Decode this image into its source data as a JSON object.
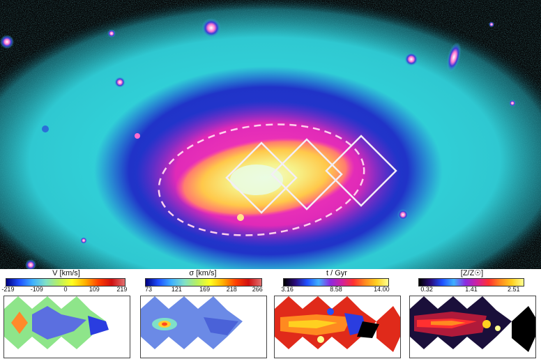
{
  "panels": [
    {
      "title": "V [km/s]",
      "ticks": [
        "-219",
        "-109",
        "0",
        "109",
        "219"
      ],
      "colormap": "sauron"
    },
    {
      "title": "σ [km/s]",
      "ticks": [
        "73",
        "121",
        "169",
        "218",
        "266"
      ],
      "colormap": "sauron"
    },
    {
      "title": "t / Gyr",
      "ticks": [
        "3.16",
        "8.58",
        "14.00"
      ],
      "colormap": "idl"
    },
    {
      "title": "[Z/Z☉]",
      "ticks": [
        "0.32",
        "1.41",
        "2.51"
      ],
      "colormap": "idl"
    }
  ]
}
